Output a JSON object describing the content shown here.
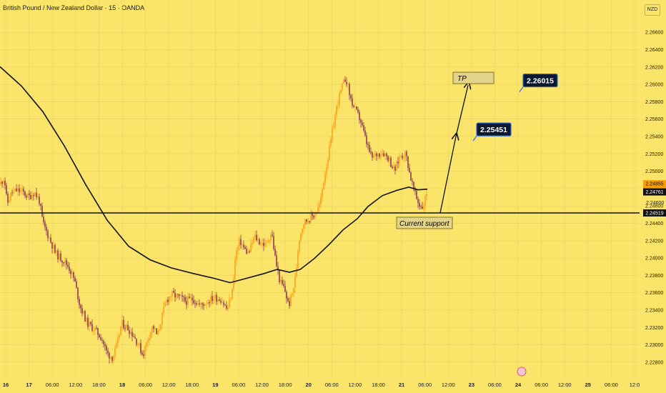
{
  "header": {
    "title": "British Pound / New Zealand Dollar · 15 · OANDA",
    "currency": "NZD"
  },
  "colors": {
    "background": "#fbe46a",
    "grid": "#e9d363",
    "bull": "#f7a21b",
    "bear": "#8b3a57",
    "line": "#111111",
    "price_tag": "#f59e0b",
    "box_fill": "#e4d48a",
    "target_fill": "#0c1830",
    "target_border": "#2b6ad8"
  },
  "chart_data": {
    "type": "candlestick",
    "symbol": "GBPNZD",
    "timeframe": "15",
    "ylim": [
      2.227,
      2.267
    ],
    "y_ticks": [
      "2.26600",
      "2.26400",
      "2.26200",
      "2.26000",
      "2.25800",
      "2.25600",
      "2.25400",
      "2.25200",
      "2.25000",
      "2.24800",
      "2.24600",
      "2.24400",
      "2.24200",
      "2.24000",
      "2.23800",
      "2.23600",
      "2.23400",
      "2.23200",
      "2.23000",
      "2.22800"
    ],
    "x_ticks": [
      "16",
      "17",
      "06:00",
      "12:00",
      "18:00",
      "18",
      "06:00",
      "12:00",
      "18:00",
      "19",
      "06:00",
      "12:00",
      "18:00",
      "20",
      "06:00",
      "12:00",
      "18:00",
      "21",
      "06:00",
      "12:00",
      "23",
      "06:00",
      "24",
      "06:00",
      "12:00",
      "25",
      "06:00",
      "12:0"
    ],
    "grid": true,
    "price_path": [
      [
        0,
        2.2485
      ],
      [
        6,
        2.2493
      ],
      [
        10,
        2.2462
      ],
      [
        16,
        2.2475
      ],
      [
        24,
        2.2478
      ],
      [
        32,
        2.2476
      ],
      [
        40,
        2.247
      ],
      [
        48,
        2.2476
      ],
      [
        55,
        2.2466
      ],
      [
        60,
        2.244
      ],
      [
        68,
        2.2425
      ],
      [
        78,
        2.2405
      ],
      [
        88,
        2.2398
      ],
      [
        96,
        2.239
      ],
      [
        104,
        2.2375
      ],
      [
        112,
        2.2345
      ],
      [
        122,
        2.2325
      ],
      [
        132,
        2.2318
      ],
      [
        142,
        2.2308
      ],
      [
        150,
        2.229
      ],
      [
        158,
        2.2285
      ],
      [
        164,
        2.23
      ],
      [
        170,
        2.2325
      ],
      [
        178,
        2.232
      ],
      [
        186,
        2.2312
      ],
      [
        194,
        2.23
      ],
      [
        200,
        2.2288
      ],
      [
        208,
        2.231
      ],
      [
        214,
        2.2322
      ],
      [
        220,
        2.231
      ],
      [
        226,
        2.233
      ],
      [
        232,
        2.235
      ],
      [
        240,
        2.2358
      ],
      [
        250,
        2.2355
      ],
      [
        260,
        2.235
      ],
      [
        270,
        2.2353
      ],
      [
        280,
        2.2345
      ],
      [
        290,
        2.235
      ],
      [
        300,
        2.2355
      ],
      [
        310,
        2.2352
      ],
      [
        318,
        2.234
      ],
      [
        325,
        2.2362
      ],
      [
        330,
        2.2405
      ],
      [
        336,
        2.242
      ],
      [
        342,
        2.241
      ],
      [
        348,
        2.2405
      ],
      [
        356,
        2.2425
      ],
      [
        364,
        2.2418
      ],
      [
        372,
        2.2415
      ],
      [
        380,
        2.243
      ],
      [
        386,
        2.2395
      ],
      [
        392,
        2.2372
      ],
      [
        398,
        2.2365
      ],
      [
        404,
        2.2345
      ],
      [
        410,
        2.2362
      ],
      [
        414,
        2.238
      ],
      [
        418,
        2.242
      ],
      [
        424,
        2.244
      ],
      [
        432,
        2.2445
      ],
      [
        440,
        2.245
      ],
      [
        448,
        2.2462
      ],
      [
        454,
        2.2495
      ],
      [
        460,
        2.252
      ],
      [
        466,
        2.255
      ],
      [
        472,
        2.2578
      ],
      [
        478,
        2.2595
      ],
      [
        484,
        2.2608
      ],
      [
        490,
        2.2585
      ],
      [
        496,
        2.2572
      ],
      [
        504,
        2.256
      ],
      [
        512,
        2.2535
      ],
      [
        520,
        2.2515
      ],
      [
        528,
        2.252
      ],
      [
        536,
        2.2522
      ],
      [
        544,
        2.2515
      ],
      [
        552,
        2.25
      ],
      [
        560,
        2.2518
      ],
      [
        568,
        2.252
      ],
      [
        574,
        2.2495
      ],
      [
        580,
        2.2475
      ],
      [
        586,
        2.2462
      ],
      [
        592,
        2.2458
      ],
      [
        598,
        2.2478
      ]
    ],
    "moving_average": [
      [
        0,
        2.26203
      ],
      [
        30,
        2.25981
      ],
      [
        60,
        2.25684
      ],
      [
        90,
        2.25292
      ],
      [
        120,
        2.24844
      ],
      [
        150,
        2.24435
      ],
      [
        180,
        2.24135
      ],
      [
        210,
        2.23979
      ],
      [
        240,
        2.23885
      ],
      [
        270,
        2.23822
      ],
      [
        300,
        2.23765
      ],
      [
        322,
        2.23716
      ],
      [
        345,
        2.23766
      ],
      [
        370,
        2.23822
      ],
      [
        388,
        2.23869
      ],
      [
        405,
        2.23836
      ],
      [
        420,
        2.23867
      ],
      [
        440,
        2.23995
      ],
      [
        460,
        2.24151
      ],
      [
        480,
        2.24323
      ],
      [
        500,
        2.24452
      ],
      [
        515,
        2.24593
      ],
      [
        535,
        2.24718
      ],
      [
        555,
        2.24778
      ],
      [
        572,
        2.24817
      ],
      [
        585,
        2.24785
      ],
      [
        598,
        2.24793
      ]
    ],
    "support_level": 2.24519,
    "current_price": 2.24855,
    "countdown": "02:31",
    "ma_value": 2.24761,
    "tag_2": "2.24600",
    "annotations": {
      "tp_label": "TP",
      "support_label": "Current support",
      "target_1": "2.25451",
      "target_2": "2.26015"
    }
  }
}
